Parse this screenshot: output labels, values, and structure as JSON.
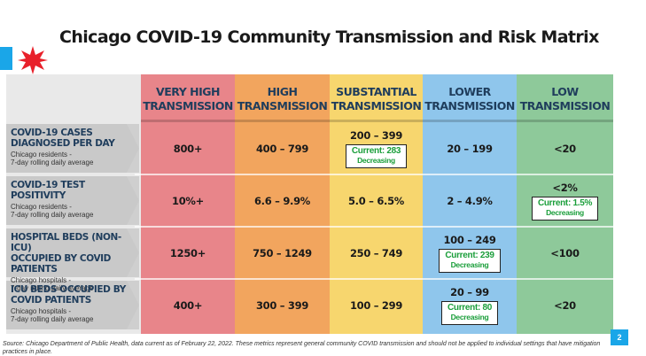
{
  "slide": {
    "title": "Chicago COVID-19 Community Transmission and Risk Matrix",
    "page_number": "2",
    "footer": "Source: Chicago Department of Public Health, data current as of February 22, 2022. These metrics represent general community COVID transmission and should not be applied to individual settings that have mitigation practices in place."
  },
  "colors": {
    "very_high": "#e8858a",
    "high": "#f2a55e",
    "substantial": "#f7d66e",
    "lower": "#8fc6ec",
    "low": "#8ec99a",
    "accent_blue": "#1aa6e8",
    "star_red": "#e8202a",
    "current_text": "#1a9e3a"
  },
  "columns": [
    {
      "line1": "VERY HIGH",
      "line2": "TRANSMISSION"
    },
    {
      "line1": "HIGH",
      "line2": "TRANSMISSION"
    },
    {
      "line1": "SUBSTANTIAL",
      "line2": "TRANSMISSION"
    },
    {
      "line1": "LOWER",
      "line2": "TRANSMISSION"
    },
    {
      "line1": "LOW",
      "line2": "TRANSMISSION"
    }
  ],
  "rows": [
    {
      "title_line1": "COVID-19 CASES",
      "title_line2": "DIAGNOSED PER DAY",
      "sub_line1": "Chicago residents -",
      "sub_line2": "7-day rolling daily average",
      "cells": [
        "800+",
        "400 – 799",
        "200 – 399",
        "20 – 199",
        "<20"
      ],
      "current": {
        "column": 2,
        "value": "Current: 283",
        "trend": "Decreasing"
      }
    },
    {
      "title_line1": "COVID-19 TEST POSITIVITY",
      "title_line2": "",
      "sub_line1": "Chicago residents -",
      "sub_line2": "7-day rolling daily average",
      "cells": [
        "10%+",
        "6.6 – 9.9%",
        "5.0 – 6.5%",
        "2 – 4.9%",
        "<2%"
      ],
      "current": {
        "column": 4,
        "value": "Current: 1.5%",
        "trend": "Decreasing"
      }
    },
    {
      "title_line1": "HOSPITAL BEDS (NON-ICU)",
      "title_line2": "OCCUPIED BY COVID PATIENTS",
      "sub_line1": "Chicago hospitals -",
      "sub_line2": "7-day rolling daily average",
      "cells": [
        "1250+",
        "750 – 1249",
        "250 – 749",
        "100 – 249",
        "<100"
      ],
      "current": {
        "column": 3,
        "value": "Current: 239",
        "trend": "Decreasing"
      }
    },
    {
      "title_line1": "ICU BEDS OCCUPIED BY",
      "title_line2": "COVID PATIENTS",
      "sub_line1": "Chicago hospitals -",
      "sub_line2": "7-day rolling daily average",
      "cells": [
        "400+",
        "300 – 399",
        "100 – 299",
        "20 – 99",
        "<20"
      ],
      "current": {
        "column": 3,
        "value": "Current: 80",
        "trend": "Decreasing"
      }
    }
  ]
}
